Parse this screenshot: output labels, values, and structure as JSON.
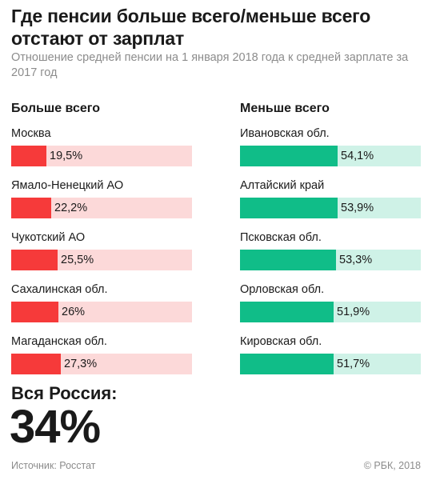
{
  "title": "Где пенсии больше всего/меньше всего отстают от зарплат",
  "subtitle": "Отношение средней пенсии на 1 января 2018 года к средней зарплате за 2017 год",
  "colors": {
    "left_fill": "#f63a3a",
    "left_track": "#fcd9d9",
    "right_fill": "#10bd88",
    "right_track": "#cff2e7"
  },
  "chart_data": [
    {
      "type": "bar",
      "title": "Больше всего",
      "categories": [
        "Москва",
        "Ямало-Ненецкий АО",
        "Чукотский АО",
        "Сахалинская обл.",
        "Магаданская обл."
      ],
      "values": [
        19.5,
        22.2,
        25.5,
        26,
        27.3
      ],
      "value_labels": [
        "19,5%",
        "22,2%",
        "25,5%",
        "26%",
        "27,3%"
      ],
      "xlim": [
        0,
        100
      ],
      "unit": "%"
    },
    {
      "type": "bar",
      "title": "Меньше всего",
      "categories": [
        "Ивановская обл.",
        "Алтайский край",
        "Псковская обл.",
        "Орловская обл.",
        "Кировская обл."
      ],
      "values": [
        54.1,
        53.9,
        53.3,
        51.9,
        51.7
      ],
      "value_labels": [
        "54,1%",
        "53,9%",
        "53,3%",
        "51,9%",
        "51,7%"
      ],
      "xlim": [
        0,
        100
      ],
      "unit": "%"
    }
  ],
  "total": {
    "label": "Вся Россия:",
    "value": "34%"
  },
  "footer": {
    "source": "Источник: Росстат",
    "copyright": "© РБК, 2018"
  }
}
